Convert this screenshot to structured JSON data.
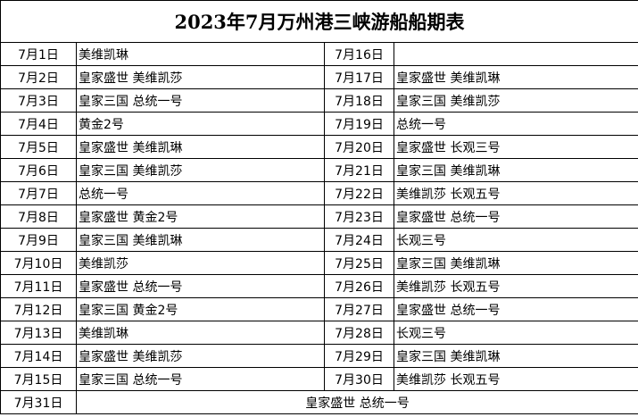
{
  "title": "2023年7月万州港三峡游船船期表",
  "left": [
    {
      "date": "7月1日",
      "ships": "美维凯琳"
    },
    {
      "date": "7月2日",
      "ships": "皇家盛世  美维凯莎"
    },
    {
      "date": "7月3日",
      "ships": "皇家三国  总统一号"
    },
    {
      "date": "7月4日",
      "ships": "黄金2号"
    },
    {
      "date": "7月5日",
      "ships": "皇家盛世  美维凯琳"
    },
    {
      "date": "7月6日",
      "ships": "皇家三国  美维凯莎"
    },
    {
      "date": "7月7日",
      "ships": "总统一号"
    },
    {
      "date": "7月8日",
      "ships": "皇家盛世  黄金2号"
    },
    {
      "date": "7月9日",
      "ships": "皇家三国  美维凯琳"
    },
    {
      "date": "7月10日",
      "ships": "美维凯莎"
    },
    {
      "date": "7月11日",
      "ships": "皇家盛世  总统一号"
    },
    {
      "date": "7月12日",
      "ships": "皇家三国  黄金2号"
    },
    {
      "date": "7月13日",
      "ships": "美维凯琳"
    },
    {
      "date": "7月14日",
      "ships": "皇家盛世  美维凯莎"
    },
    {
      "date": "7月15日",
      "ships": "皇家三国  总统一号"
    }
  ],
  "right": [
    {
      "date": "7月16日",
      "ships": ""
    },
    {
      "date": "7月17日",
      "ships": "皇家盛世  美维凯琳"
    },
    {
      "date": "7月18日",
      "ships": "皇家三国  美维凯莎"
    },
    {
      "date": "7月19日",
      "ships": "总统一号"
    },
    {
      "date": "7月20日",
      "ships": "皇家盛世  长观三号"
    },
    {
      "date": "7月21日",
      "ships": "皇家三国  美维凯琳"
    },
    {
      "date": "7月22日",
      "ships": "美维凯莎  长观五号"
    },
    {
      "date": "7月23日",
      "ships": "皇家盛世  总统一号"
    },
    {
      "date": "7月24日",
      "ships": "长观三号"
    },
    {
      "date": "7月25日",
      "ships": "皇家三国  美维凯琳"
    },
    {
      "date": "7月26日",
      "ships": "美维凯莎  长观五号"
    },
    {
      "date": "7月27日",
      "ships": "皇家盛世  总统一号"
    },
    {
      "date": "7月28日",
      "ships": "长观三号"
    },
    {
      "date": "7月29日",
      "ships": "皇家三国  美维凯琳"
    },
    {
      "date": "7月30日",
      "ships": "美维凯莎  长观五号"
    }
  ],
  "last": {
    "date": "7月31日",
    "ships": "皇家盛世  总统一号"
  }
}
